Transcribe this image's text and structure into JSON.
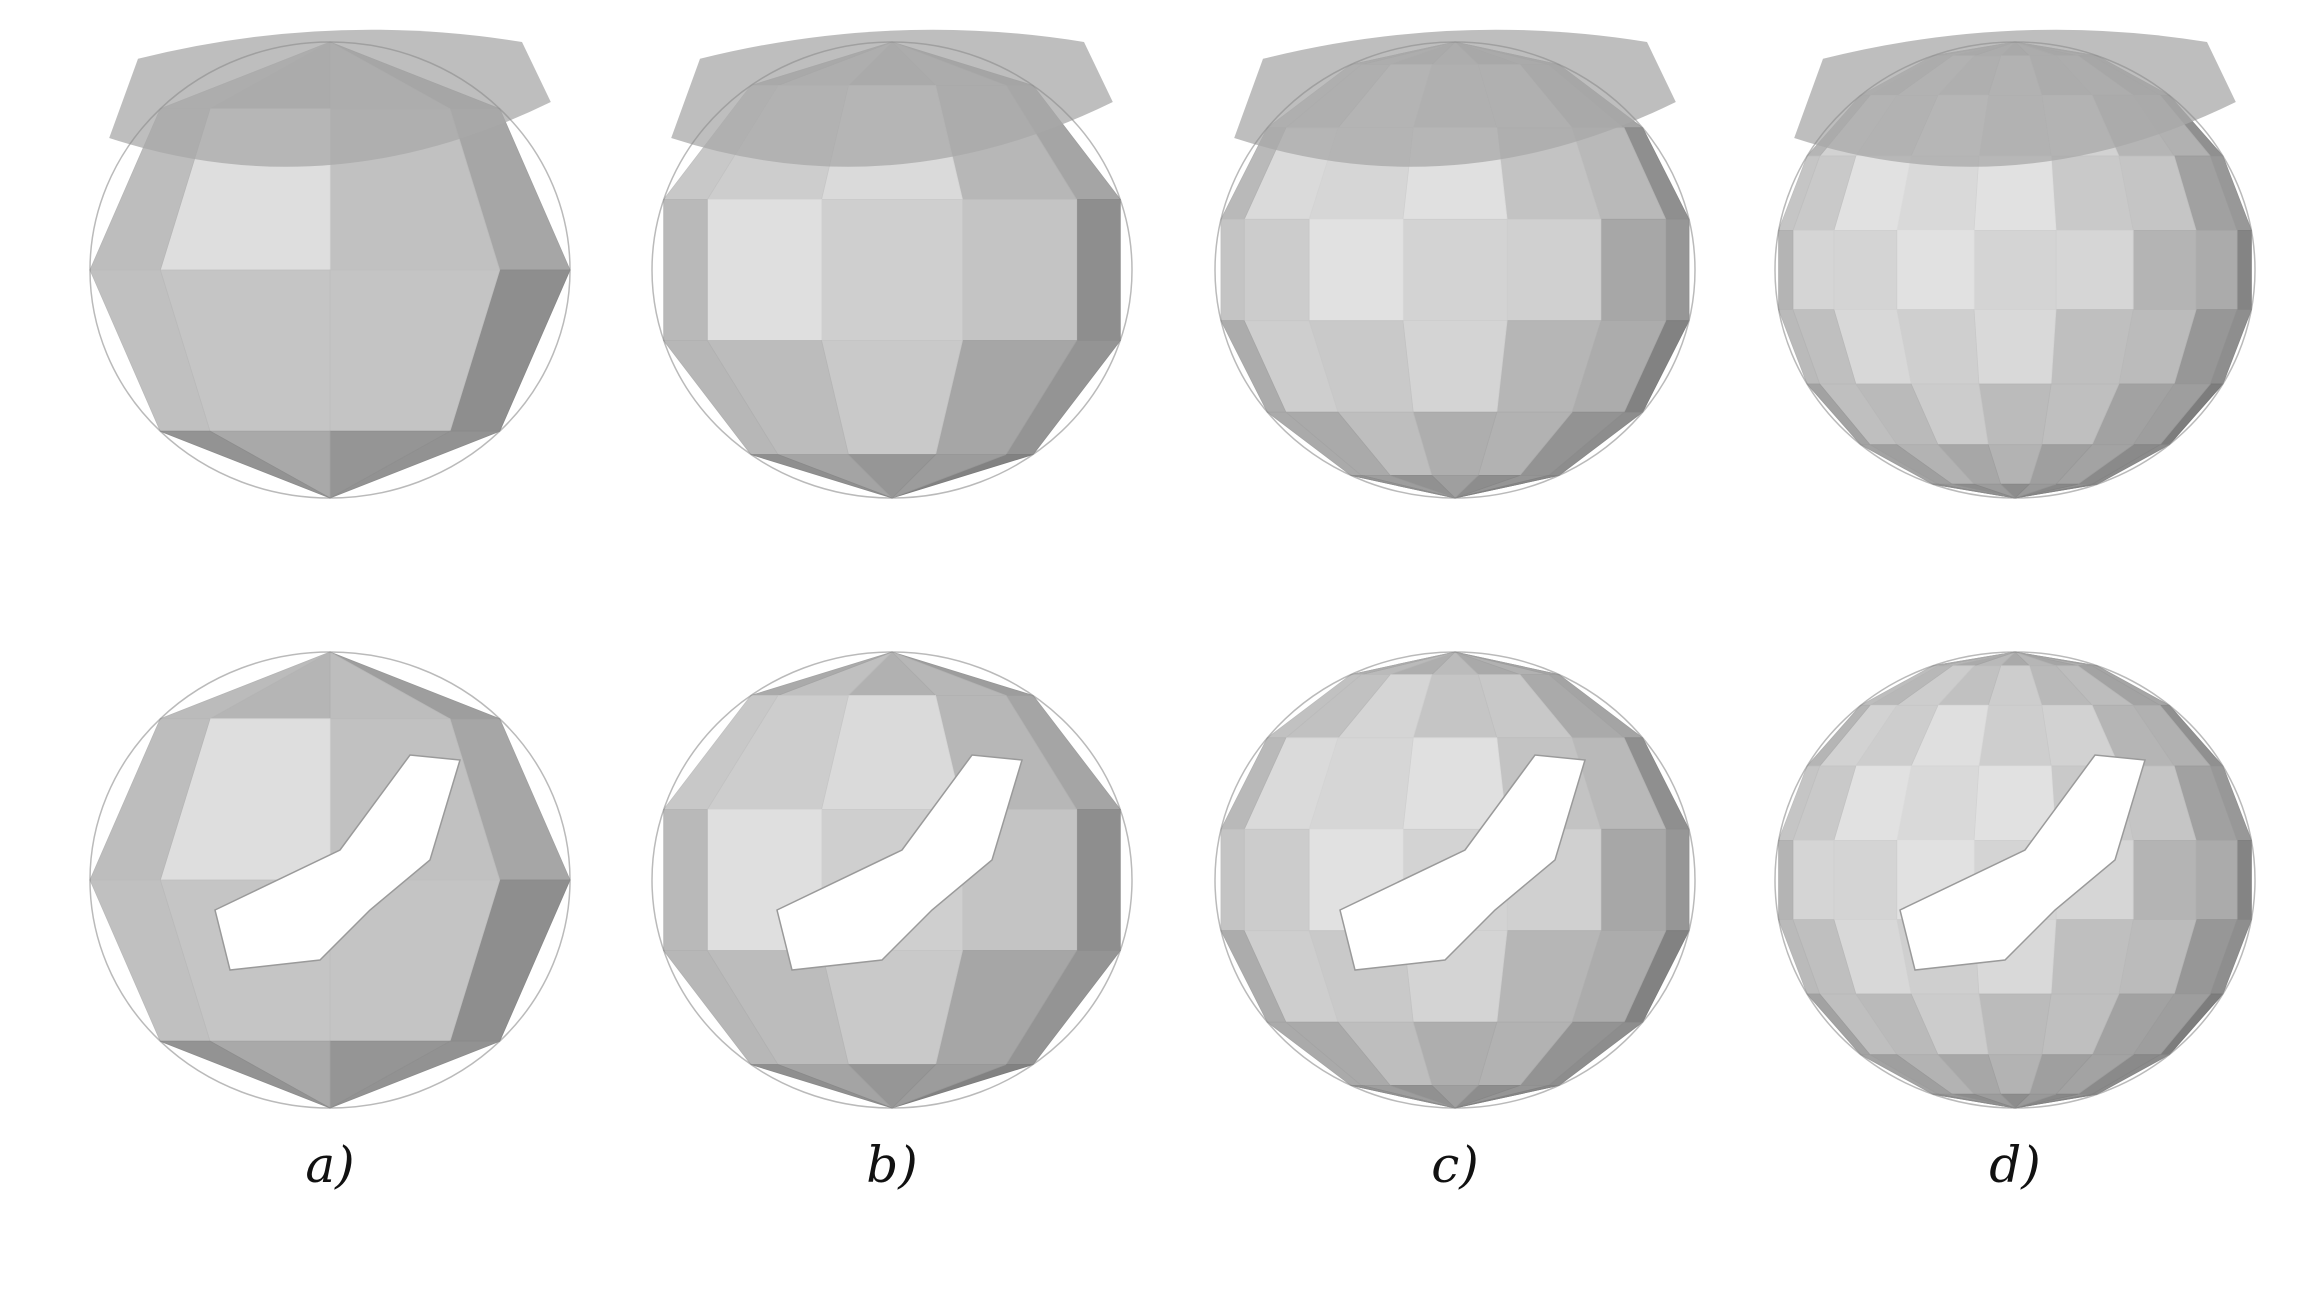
{
  "panels": [
    {
      "label": "a)",
      "mesh_resolution": "coarse"
    },
    {
      "label": "b)",
      "mesh_resolution": "medium-coarse"
    },
    {
      "label": "c)",
      "mesh_resolution": "medium-fine"
    },
    {
      "label": "d)",
      "mesh_resolution": "fine"
    }
  ],
  "views": [
    "side-view-open-top",
    "oblique-view-with-hole"
  ],
  "colors": {
    "background": "#ffffff",
    "mesh_light": "#d6d6d6",
    "mesh_mid": "#b4b4b4",
    "mesh_dark": "#7c7c7c",
    "label_text": "#111111"
  }
}
